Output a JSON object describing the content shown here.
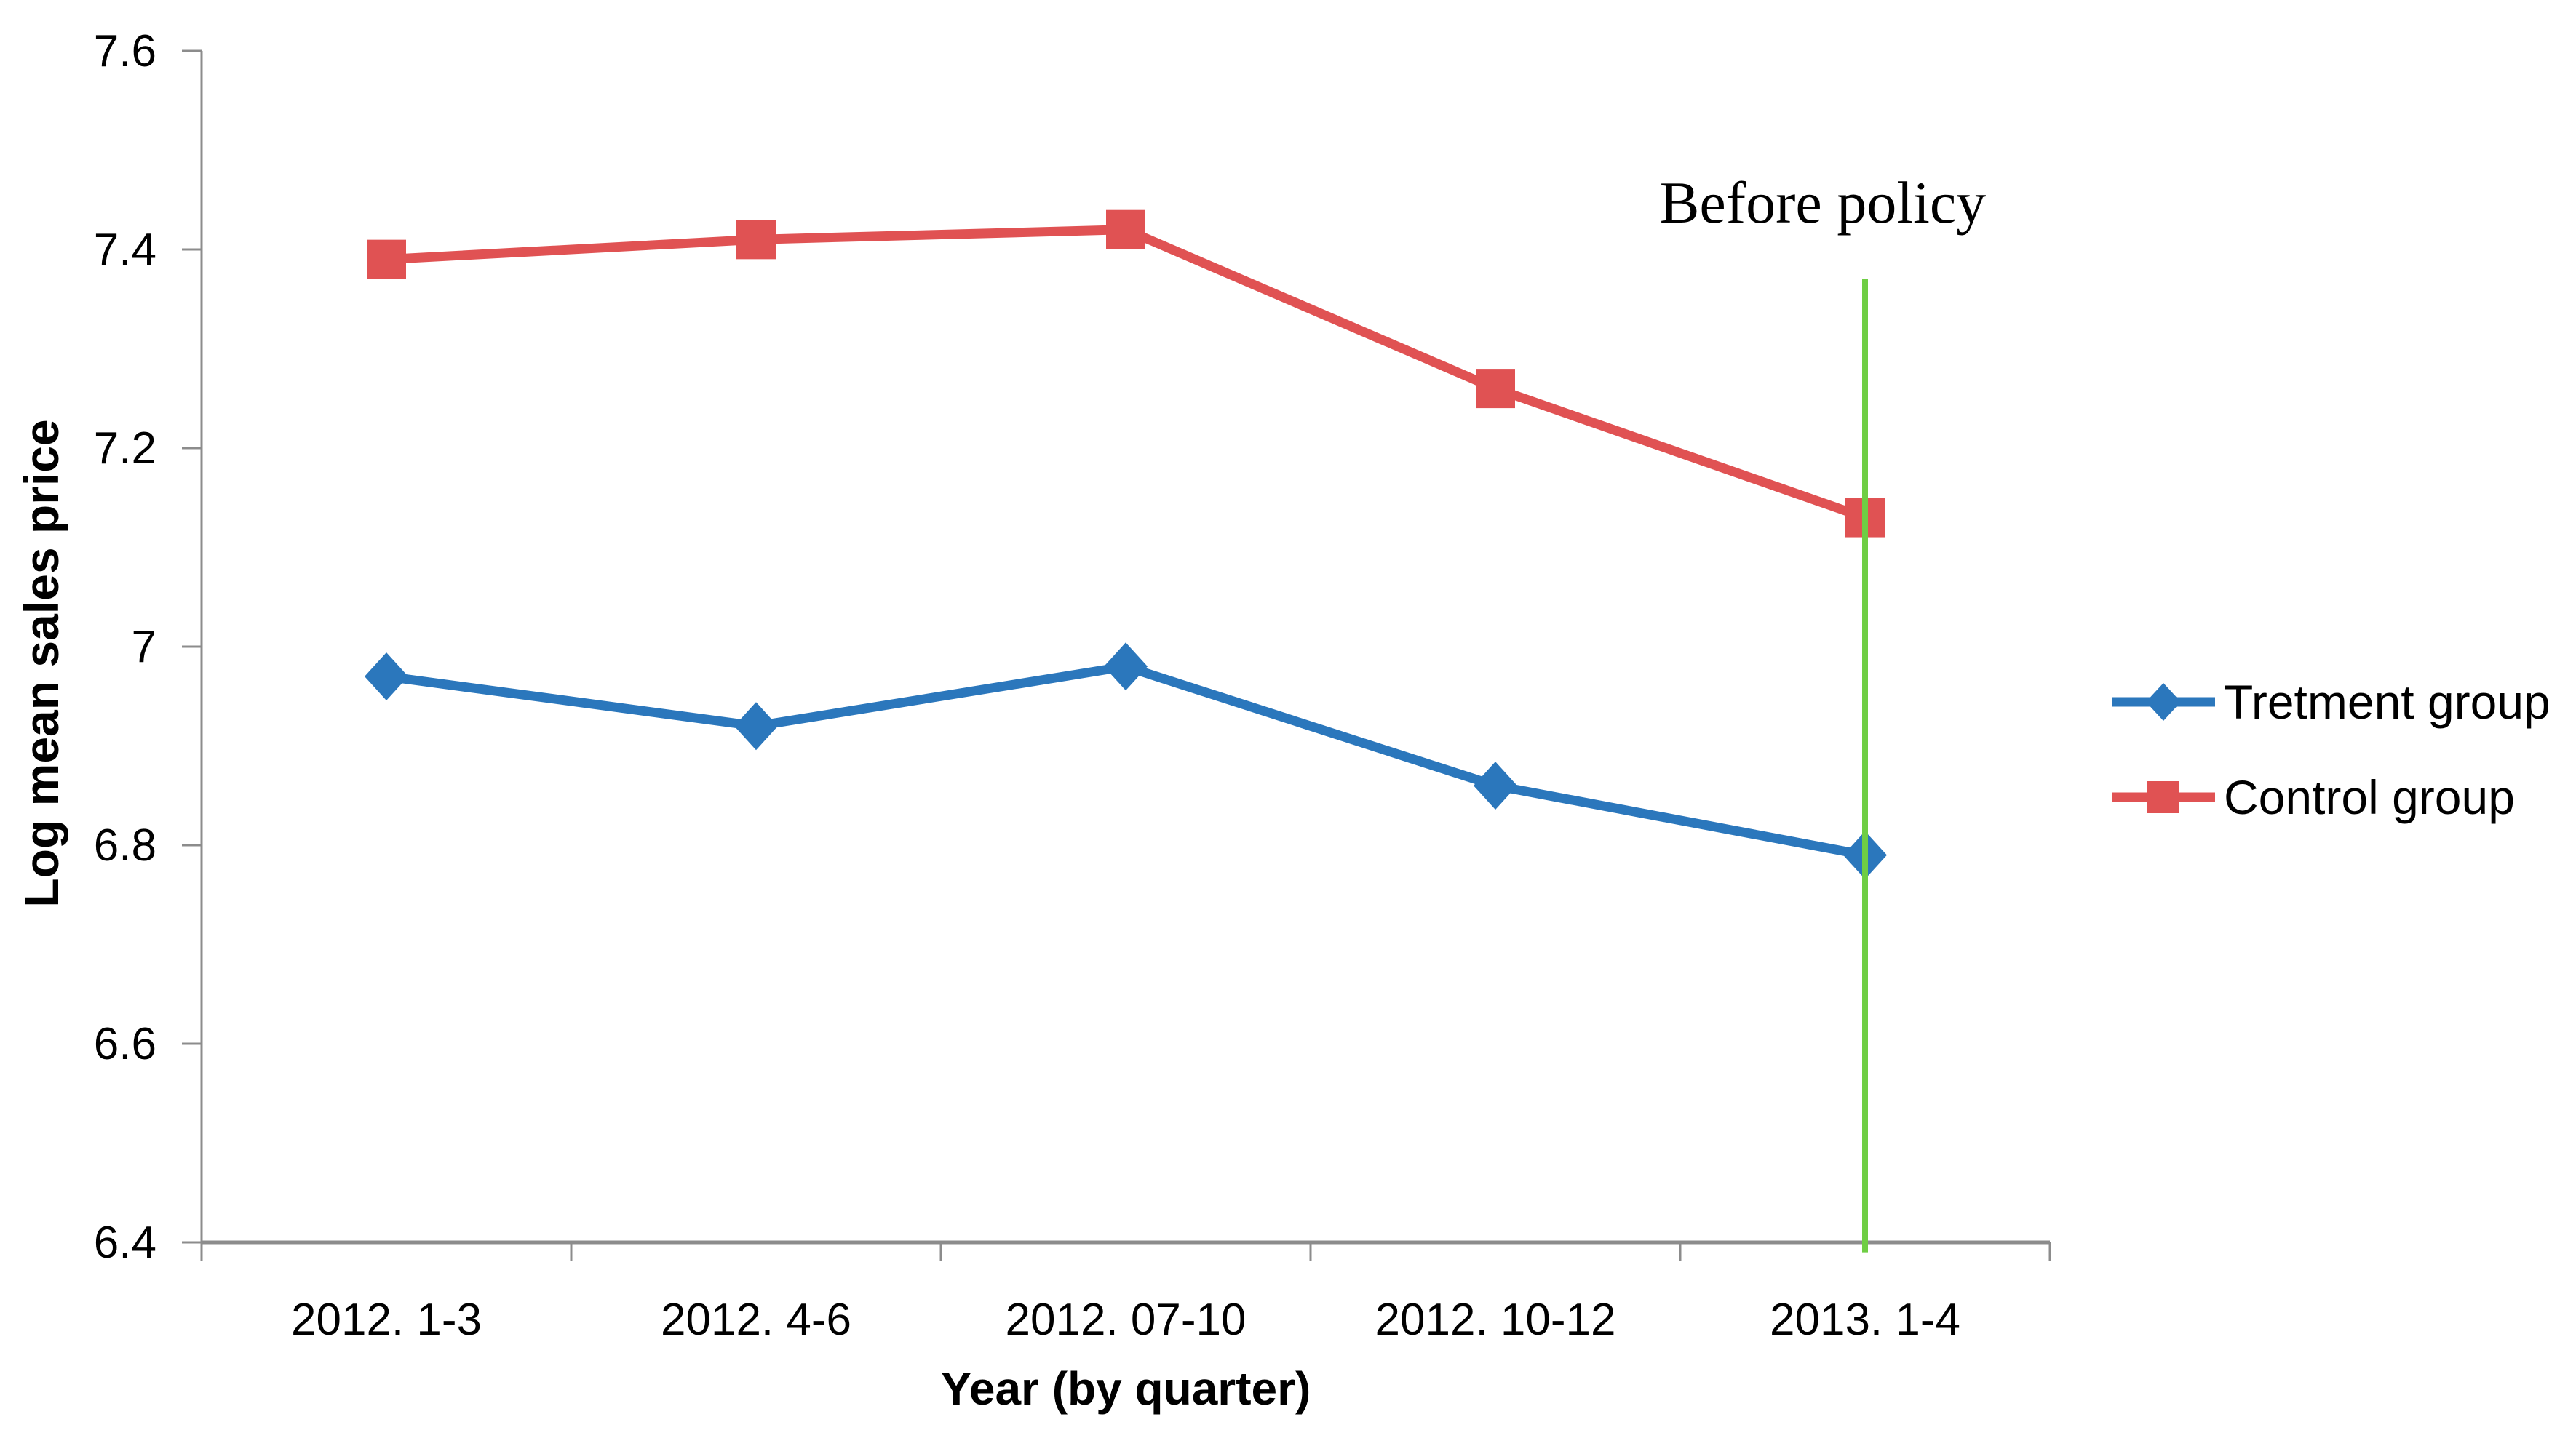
{
  "figure": {
    "background": "#ffffff",
    "text_color": "#000000",
    "axis_color": "#8c8c8c"
  },
  "chart_data": {
    "type": "line",
    "title": "",
    "xlabel": "Year (by quarter)",
    "ylabel": "Log mean sales price",
    "categories": [
      "2012. 1-3",
      "2012. 4-6",
      "2012. 07-10",
      "2012. 10-12",
      "2013. 1-4"
    ],
    "series": [
      {
        "name": "Tretment group",
        "color": "#2b77bc",
        "marker": "diamond",
        "values": [
          6.97,
          6.92,
          6.98,
          6.86,
          6.79
        ]
      },
      {
        "name": "Control group",
        "color": "#e05253",
        "marker": "square",
        "values": [
          7.39,
          7.41,
          7.42,
          7.26,
          7.13
        ]
      }
    ],
    "ylim": [
      6.4,
      7.6
    ],
    "yticks": [
      {
        "value": 7.6,
        "label": "7.6"
      },
      {
        "value": 7.4,
        "label": "7.4"
      },
      {
        "value": 7.2,
        "label": "7.2"
      },
      {
        "value": 7.0,
        "label": "7"
      },
      {
        "value": 6.8,
        "label": "6.8"
      },
      {
        "value": 6.6,
        "label": "6.6"
      },
      {
        "value": 6.4,
        "label": "6.4"
      }
    ],
    "grid": false,
    "legend_position": "right",
    "annotation": {
      "label": "Before policy",
      "x_category": "2013. 1-4",
      "line_color": "#6fce44",
      "y_top": 7.37,
      "y_bottom": 6.39
    }
  }
}
